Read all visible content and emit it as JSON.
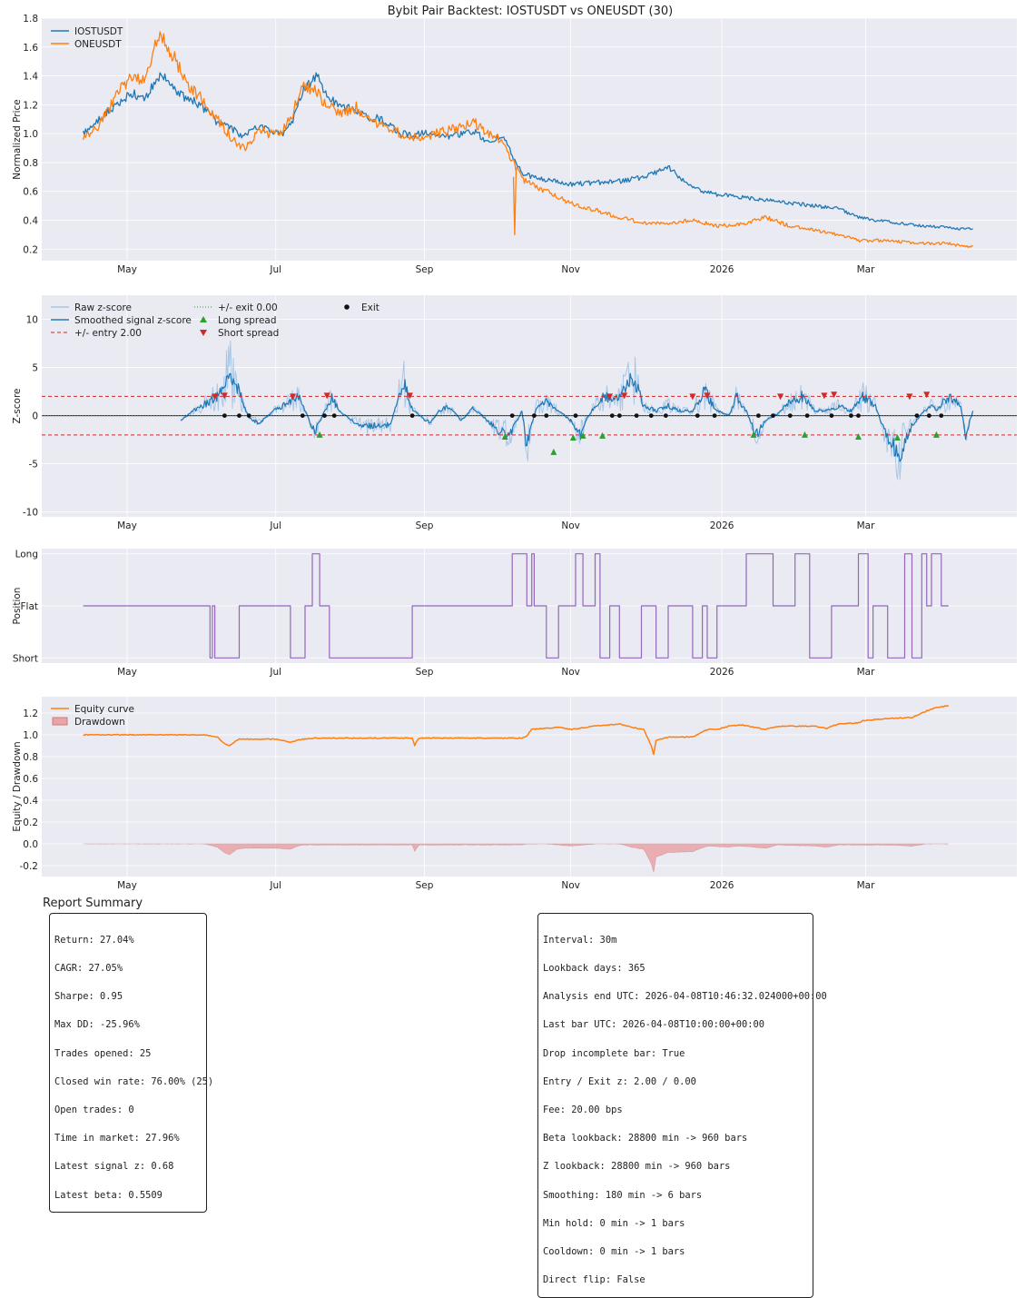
{
  "title": "Bybit Pair Backtest: IOSTUSDT vs ONEUSDT (30)",
  "colors": {
    "iost": "#1f77b4",
    "one": "#ff7f0e",
    "raw_z": "#a6c8e8",
    "entry": "#d62728",
    "exit_line": "#2ca02c",
    "position": "#9467bd",
    "drawdown": "#e8a4a6",
    "panel_bg": "#eaeaf2"
  },
  "chart_data": [
    {
      "type": "line",
      "panel": "prices",
      "ylabel": "Normalized Price",
      "ylim": [
        0.12,
        1.8
      ],
      "yticks": [
        "0.2",
        "0.4",
        "0.6",
        "0.8",
        "1.0",
        "1.2",
        "1.4",
        "1.6",
        "1.8"
      ],
      "xticks": [
        "May",
        "Jul",
        "Sep",
        "Nov",
        "2026",
        "Mar"
      ],
      "legend": [
        "IOSTUSDT",
        "ONEUSDT"
      ],
      "series": [
        {
          "name": "IOSTUSDT",
          "x": [
            0,
            6,
            10,
            15,
            20,
            25,
            28,
            32,
            38,
            42,
            48,
            55,
            62,
            66,
            72,
            77,
            82,
            86,
            90,
            96,
            100,
            106,
            112,
            116,
            122,
            126,
            130,
            135,
            140,
            145,
            150,
            156,
            160,
            166,
            172,
            180,
            190,
            200,
            210,
            220,
            230,
            240,
            250,
            260,
            270,
            280,
            290,
            300,
            310,
            318,
            325,
            335,
            345,
            355,
            360,
            365
          ],
          "values": [
            1.0,
            1.1,
            1.15,
            1.22,
            1.28,
            1.24,
            1.32,
            1.42,
            1.3,
            1.25,
            1.2,
            1.08,
            1.02,
            0.98,
            1.05,
            1.02,
            1.0,
            1.1,
            1.3,
            1.4,
            1.25,
            1.2,
            1.15,
            1.12,
            1.1,
            1.05,
            1.0,
            0.99,
            1.0,
            1.0,
            0.98,
            1.0,
            1.02,
            0.95,
            0.98,
            0.72,
            0.68,
            0.65,
            0.66,
            0.67,
            0.7,
            0.77,
            0.62,
            0.58,
            0.56,
            0.54,
            0.52,
            0.5,
            0.48,
            0.42,
            0.4,
            0.38,
            0.36,
            0.35,
            0.34,
            0.34
          ]
        },
        {
          "name": "ONEUSDT",
          "x": [
            0,
            6,
            10,
            15,
            20,
            25,
            28,
            32,
            38,
            42,
            48,
            55,
            62,
            66,
            72,
            77,
            82,
            86,
            90,
            96,
            100,
            106,
            112,
            116,
            122,
            126,
            130,
            135,
            140,
            145,
            150,
            156,
            160,
            166,
            172,
            180,
            190,
            200,
            210,
            220,
            230,
            240,
            250,
            260,
            270,
            280,
            290,
            300,
            310,
            318,
            325,
            335,
            345,
            355,
            360,
            365
          ],
          "values": [
            0.95,
            1.05,
            1.15,
            1.3,
            1.4,
            1.35,
            1.55,
            1.7,
            1.5,
            1.35,
            1.25,
            1.1,
            0.95,
            0.9,
            1.02,
            1.0,
            1.02,
            1.15,
            1.35,
            1.28,
            1.2,
            1.15,
            1.18,
            1.1,
            1.05,
            1.03,
            1.0,
            0.98,
            0.99,
            1.0,
            1.02,
            1.05,
            1.08,
            1.0,
            0.95,
            0.68,
            0.6,
            0.52,
            0.47,
            0.42,
            0.38,
            0.38,
            0.4,
            0.36,
            0.37,
            0.42,
            0.36,
            0.33,
            0.3,
            0.26,
            0.26,
            0.25,
            0.24,
            0.24,
            0.22,
            0.22
          ]
        }
      ]
    },
    {
      "type": "line",
      "panel": "zscore",
      "ylabel": "Z-score",
      "ylim": [
        -10.5,
        12.5
      ],
      "yticks": [
        "-10",
        "-5",
        "0",
        "5",
        "10"
      ],
      "xticks": [
        "May",
        "Jul",
        "Sep",
        "Nov",
        "2026",
        "Mar"
      ],
      "legend": [
        "Raw z-score",
        "Smoothed signal z-score",
        "+/- entry 2.00",
        "+/- exit 0.00",
        "Long spread",
        "Short spread",
        "Exit"
      ],
      "entry_threshold": 2.0,
      "exit_threshold": 0.0,
      "series": [
        {
          "name": "Smoothed signal z-score",
          "x": [
            40,
            45,
            50,
            55,
            58,
            60,
            62,
            64,
            66,
            68,
            72,
            78,
            85,
            88,
            92,
            95,
            99,
            102,
            105,
            110,
            115,
            120,
            126,
            130,
            132,
            134,
            138,
            142,
            146,
            150,
            155,
            160,
            165,
            170,
            175,
            180,
            182,
            184,
            186,
            190,
            195,
            200,
            204,
            206,
            210,
            214,
            218,
            222,
            226,
            230,
            235,
            240,
            245,
            250,
            255,
            260,
            265,
            268,
            272,
            276,
            280,
            285,
            290,
            295,
            300,
            305,
            310,
            315,
            320,
            325,
            330,
            335,
            340,
            345,
            348,
            350,
            355,
            360,
            362,
            365
          ],
          "values": [
            -0.5,
            0.5,
            1.2,
            2.0,
            3.5,
            5.0,
            3.0,
            2.5,
            1.0,
            -0.2,
            -0.8,
            0.5,
            1.5,
            2.3,
            0.0,
            -1.8,
            0.5,
            2.0,
            0.5,
            -0.5,
            -1.2,
            -1.0,
            -1.0,
            2.5,
            3.5,
            1.0,
            0.0,
            -0.8,
            0.5,
            1.0,
            -0.5,
            0.8,
            -0.3,
            -1.5,
            -2.0,
            0.5,
            -3.2,
            -1.0,
            1.0,
            1.5,
            0.5,
            -0.5,
            -2.0,
            -0.5,
            1.0,
            2.0,
            1.5,
            2.5,
            4.0,
            1.0,
            0.5,
            1.0,
            0.5,
            0.5,
            2.5,
            0.5,
            0.0,
            2.0,
            0.5,
            -2.0,
            -0.5,
            0.2,
            1.5,
            2.0,
            0.5,
            0.5,
            1.0,
            0.5,
            2.0,
            1.0,
            -2.5,
            -4.0,
            -1.0,
            0.5,
            1.0,
            0.5,
            2.0,
            1.0,
            -2.0,
            0.5
          ]
        }
      ],
      "long_entries_x": [
        97,
        205,
        173,
        193,
        201,
        213,
        275,
        296,
        318,
        334,
        350
      ],
      "long_entries_y": [
        -2.0,
        -2.1,
        -2.2,
        -3.8,
        -2.3,
        -2.1,
        -2.0,
        -2.0,
        -2.2,
        -2.3,
        -2.0
      ],
      "short_entries_x": [
        54,
        58,
        86,
        100,
        134,
        216,
        222,
        250,
        256,
        286,
        304,
        308,
        339,
        346
      ],
      "short_entries_y": [
        2.0,
        2.1,
        2.0,
        2.1,
        2.1,
        2.0,
        2.1,
        2.0,
        2.1,
        2.0,
        2.1,
        2.2,
        2.0,
        2.2
      ],
      "exit_x": [
        58,
        64,
        68,
        90,
        99,
        103,
        135,
        176,
        185,
        190,
        202,
        217,
        220,
        227,
        233,
        239,
        252,
        259,
        277,
        283,
        290,
        297,
        307,
        315,
        318,
        342,
        347,
        352
      ],
      "exit_y": [
        0,
        0,
        0,
        0,
        0,
        0,
        0,
        0,
        0,
        0,
        0,
        0,
        0,
        0,
        0,
        0,
        0,
        0,
        0,
        0,
        0,
        0,
        0,
        0,
        0,
        0,
        0,
        0
      ]
    },
    {
      "type": "line",
      "panel": "position",
      "ylabel": "Position",
      "ylim": [
        -1.1,
        1.1
      ],
      "yticks": [
        "Short",
        "Flat",
        "Long"
      ],
      "xticks": [
        "May",
        "Jul",
        "Sep",
        "Nov",
        "2026",
        "Mar"
      ],
      "steps": [
        [
          0,
          0
        ],
        [
          52,
          -1
        ],
        [
          53,
          0
        ],
        [
          54,
          -1
        ],
        [
          64,
          0
        ],
        [
          85,
          -1
        ],
        [
          91,
          0
        ],
        [
          94,
          1
        ],
        [
          97,
          0
        ],
        [
          101,
          -1
        ],
        [
          135,
          0
        ],
        [
          176,
          1
        ],
        [
          182,
          0
        ],
        [
          184,
          1
        ],
        [
          185,
          0
        ],
        [
          190,
          -1
        ],
        [
          195,
          0
        ],
        [
          202,
          1
        ],
        [
          205,
          0
        ],
        [
          210,
          1
        ],
        [
          212,
          -1
        ],
        [
          216,
          0
        ],
        [
          220,
          -1
        ],
        [
          229,
          0
        ],
        [
          235,
          -1
        ],
        [
          240,
          0
        ],
        [
          250,
          -1
        ],
        [
          254,
          0
        ],
        [
          256,
          -1
        ],
        [
          260,
          0
        ],
        [
          272,
          1
        ],
        [
          283,
          0
        ],
        [
          292,
          1
        ],
        [
          298,
          -1
        ],
        [
          307,
          0
        ],
        [
          318,
          1
        ],
        [
          322,
          -1
        ],
        [
          324,
          0
        ],
        [
          330,
          -1
        ],
        [
          337,
          1
        ],
        [
          340,
          -1
        ],
        [
          344,
          1
        ],
        [
          346,
          0
        ],
        [
          348,
          1
        ],
        [
          352,
          0
        ],
        [
          355,
          0
        ]
      ]
    },
    {
      "type": "line",
      "panel": "equity",
      "ylabel": "Equity / Drawdown",
      "ylim": [
        -0.3,
        1.35
      ],
      "yticks": [
        "-0.2",
        "0.0",
        "0.2",
        "0.4",
        "0.6",
        "0.8",
        "1.0",
        "1.2"
      ],
      "xticks": [
        "May",
        "Jul",
        "Sep",
        "Nov",
        "2026",
        "Mar"
      ],
      "legend": [
        "Equity curve",
        "Drawdown"
      ],
      "series": [
        {
          "name": "Equity curve",
          "x": [
            0,
            50,
            55,
            58,
            60,
            63,
            64,
            66,
            80,
            85,
            88,
            90,
            95,
            135,
            136,
            137,
            138,
            145,
            180,
            182,
            184,
            190,
            195,
            200,
            210,
            220,
            225,
            230,
            233,
            234,
            235,
            240,
            250,
            256,
            260,
            265,
            270,
            280,
            285,
            290,
            300,
            305,
            310,
            318,
            320,
            330,
            340,
            346,
            350,
            355
          ],
          "values": [
            1.0,
            1.0,
            0.98,
            0.92,
            0.9,
            0.95,
            0.96,
            0.96,
            0.96,
            0.93,
            0.95,
            0.96,
            0.97,
            0.97,
            0.9,
            0.95,
            0.97,
            0.97,
            0.97,
            0.99,
            1.05,
            1.06,
            1.07,
            1.05,
            1.08,
            1.1,
            1.07,
            1.05,
            0.9,
            0.82,
            0.95,
            0.98,
            0.98,
            1.05,
            1.05,
            1.08,
            1.09,
            1.05,
            1.08,
            1.08,
            1.08,
            1.06,
            1.1,
            1.11,
            1.13,
            1.15,
            1.16,
            1.22,
            1.25,
            1.27
          ]
        },
        {
          "name": "Drawdown",
          "x": [
            0,
            50,
            55,
            58,
            60,
            63,
            66,
            80,
            85,
            88,
            90,
            95,
            135,
            136,
            137,
            138,
            145,
            180,
            182,
            190,
            200,
            210,
            220,
            225,
            230,
            233,
            234,
            235,
            240,
            250,
            256,
            265,
            270,
            280,
            285,
            300,
            305,
            310,
            318,
            330,
            340,
            346,
            355
          ],
          "values": [
            0,
            0,
            -0.03,
            -0.08,
            -0.1,
            -0.05,
            -0.04,
            -0.04,
            -0.05,
            -0.02,
            -0.01,
            -0.01,
            -0.01,
            -0.07,
            -0.03,
            -0.01,
            -0.01,
            -0.01,
            0,
            0,
            -0.02,
            0,
            0,
            -0.03,
            -0.05,
            -0.18,
            -0.26,
            -0.12,
            -0.08,
            -0.07,
            -0.02,
            -0.03,
            -0.02,
            -0.04,
            -0.01,
            -0.02,
            -0.03,
            -0.01,
            -0.01,
            -0.01,
            -0.02,
            0,
            0
          ]
        }
      ]
    }
  ],
  "summary": {
    "title": "Report Summary",
    "left": [
      "Return: 27.04%",
      "CAGR: 27.05%",
      "Sharpe: 0.95",
      "Max DD: -25.96%",
      "Trades opened: 25",
      "Closed win rate: 76.00% (25)",
      "Open trades: 0",
      "Time in market: 27.96%",
      "Latest signal z: 0.68",
      "Latest beta: 0.5509"
    ],
    "right": [
      "Interval: 30m",
      "Lookback days: 365",
      "Analysis end UTC: 2026-04-08T10:46:32.024000+00:00",
      "Last bar UTC: 2026-04-08T10:00:00+00:00",
      "Drop incomplete bar: True",
      "Entry / Exit z: 2.00 / 0.00",
      "Fee: 20.00 bps",
      "Beta lookback: 28800 min -> 960 bars",
      "Z lookback: 28800 min -> 960 bars",
      "Smoothing: 180 min -> 6 bars",
      "Min hold: 0 min -> 1 bars",
      "Cooldown: 0 min -> 1 bars",
      "Direct flip: False"
    ]
  }
}
